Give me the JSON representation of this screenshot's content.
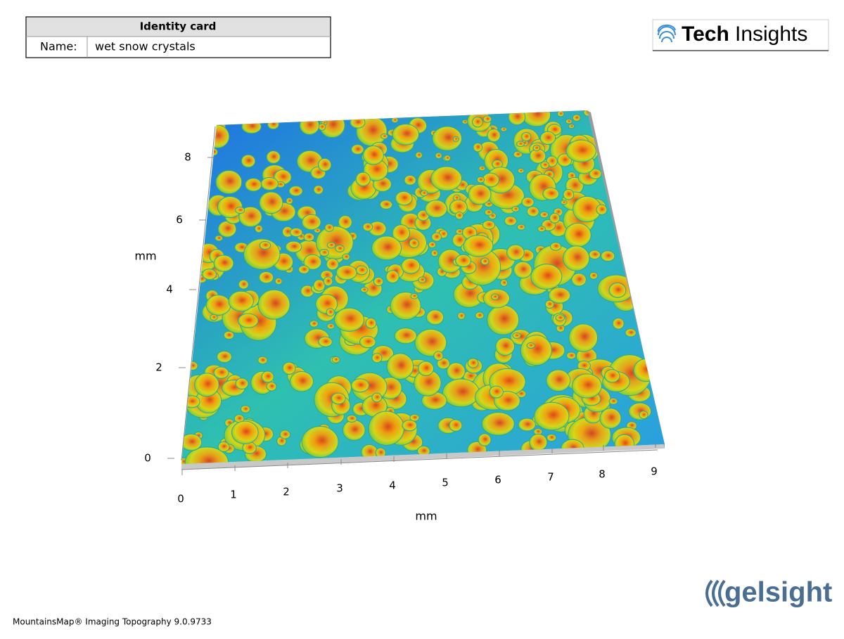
{
  "identity_card": {
    "title": "Identity card",
    "field": "Name:",
    "value": "wet snow crystals"
  },
  "logo_top": {
    "bold": "Tech",
    "light": "Insights"
  },
  "axes": {
    "y_label": "mm",
    "y_ticks": [
      "0",
      "2",
      "4",
      "6",
      "8"
    ],
    "x_label": "mm",
    "x_ticks": [
      "0",
      "1",
      "2",
      "3",
      "4",
      "5",
      "6",
      "7",
      "8",
      "9"
    ]
  },
  "logo_bottom": {
    "text": "gelsight"
  },
  "footer": "MountainsMap® Imaging Topography 9.0.9733"
}
